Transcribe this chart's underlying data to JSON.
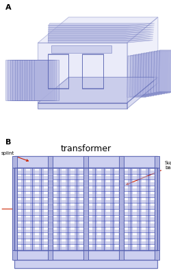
{
  "bg_color": "#ffffff",
  "label_A": "A",
  "label_B": "B",
  "title_B": "transformer",
  "blue_fill": "#b0b4e0",
  "blue_fill2": "#c5c8ee",
  "blue_edge": "#5560b0",
  "dark_blue": "#2233aa",
  "arrow_color": "#cc2200",
  "text_color": "#000000",
  "annot_fontsize": 5.0,
  "title_fontsize": 9,
  "label_fontsize": 8
}
